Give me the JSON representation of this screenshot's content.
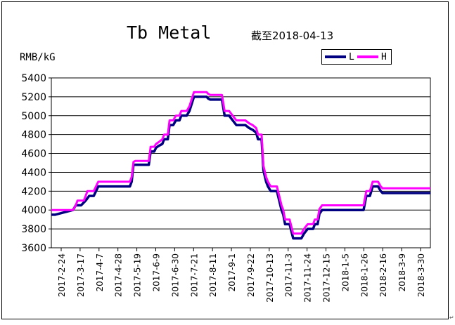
{
  "chart_data": {
    "type": "line",
    "title": "Tb Metal",
    "subtitle": "截至2018-04-13",
    "ylabel": "RMB/kG",
    "xlabel": "",
    "ylim": [
      3600,
      5400
    ],
    "yticks": [
      3600,
      3800,
      4000,
      4200,
      4400,
      4600,
      4800,
      5000,
      5200,
      5400
    ],
    "x_tick_labels": [
      "2017-2-24",
      "2017-3-17",
      "2017-4-7",
      "2017-4-28",
      "2017-5-19",
      "2017-6-9",
      "2017-6-30",
      "2017-7-21",
      "2017-8-11",
      "2017-9-1",
      "2017-9-22",
      "2017-10-13",
      "2017-11-3",
      "2017-11-24",
      "2017-12-15",
      "2018-1-5",
      "2018-1-26",
      "2018-2-16",
      "2018-3-9",
      "2018-3-30"
    ],
    "grid": "horizontal",
    "legend_position": "top-right",
    "series": [
      {
        "name": "L",
        "color": "#000080",
        "points": [
          [
            "2017-02-21",
            3950
          ],
          [
            "2017-03-13",
            4000
          ],
          [
            "2017-03-16",
            4050
          ],
          [
            "2017-03-22",
            4050
          ],
          [
            "2017-03-27",
            4100
          ],
          [
            "2017-03-31",
            4150
          ],
          [
            "2017-04-05",
            4150
          ],
          [
            "2017-04-10",
            4250
          ],
          [
            "2017-05-15",
            4250
          ],
          [
            "2017-05-17",
            4300
          ],
          [
            "2017-05-19",
            4480
          ],
          [
            "2017-05-21",
            4480
          ],
          [
            "2017-06-05",
            4480
          ],
          [
            "2017-06-07",
            4620
          ],
          [
            "2017-06-11",
            4620
          ],
          [
            "2017-06-13",
            4660
          ],
          [
            "2017-06-16",
            4680
          ],
          [
            "2017-06-20",
            4700
          ],
          [
            "2017-06-22",
            4750
          ],
          [
            "2017-06-26",
            4750
          ],
          [
            "2017-06-28",
            4900
          ],
          [
            "2017-07-02",
            4900
          ],
          [
            "2017-07-05",
            4950
          ],
          [
            "2017-07-09",
            4950
          ],
          [
            "2017-07-11",
            5000
          ],
          [
            "2017-07-17",
            5000
          ],
          [
            "2017-07-20",
            5050
          ],
          [
            "2017-07-25",
            5200
          ],
          [
            "2017-08-08",
            5200
          ],
          [
            "2017-08-10",
            5180
          ],
          [
            "2017-08-12",
            5170
          ],
          [
            "2017-08-25",
            5170
          ],
          [
            "2017-08-28",
            5000
          ],
          [
            "2017-09-02",
            5000
          ],
          [
            "2017-09-06",
            4950
          ],
          [
            "2017-09-10",
            4900
          ],
          [
            "2017-09-20",
            4900
          ],
          [
            "2017-09-24",
            4870
          ],
          [
            "2017-09-28",
            4850
          ],
          [
            "2017-10-02",
            4820
          ],
          [
            "2017-10-04",
            4750
          ],
          [
            "2017-10-08",
            4750
          ],
          [
            "2017-10-10",
            4420
          ],
          [
            "2017-10-13",
            4300
          ],
          [
            "2017-10-15",
            4250
          ],
          [
            "2017-10-18",
            4200
          ],
          [
            "2017-10-25",
            4200
          ],
          [
            "2017-10-27",
            4120
          ],
          [
            "2017-10-30",
            4000
          ],
          [
            "2017-11-01",
            3950
          ],
          [
            "2017-11-03",
            3850
          ],
          [
            "2017-11-08",
            3850
          ],
          [
            "2017-11-12",
            3700
          ],
          [
            "2017-11-21",
            3700
          ],
          [
            "2017-11-24",
            3750
          ],
          [
            "2017-11-28",
            3800
          ],
          [
            "2017-12-04",
            3800
          ],
          [
            "2017-12-06",
            3850
          ],
          [
            "2017-12-09",
            3850
          ],
          [
            "2017-12-11",
            3960
          ],
          [
            "2017-12-14",
            4000
          ],
          [
            "2018-01-29",
            4000
          ],
          [
            "2018-02-01",
            4150
          ],
          [
            "2018-02-05",
            4150
          ],
          [
            "2018-02-08",
            4250
          ],
          [
            "2018-02-14",
            4250
          ],
          [
            "2018-02-17",
            4200
          ],
          [
            "2018-02-19",
            4180
          ],
          [
            "2018-03-12",
            4180
          ]
        ]
      },
      {
        "name": "H",
        "color": "#ff00ff",
        "points": [
          [
            "2017-02-21",
            4000
          ],
          [
            "2017-03-13",
            4000
          ],
          [
            "2017-03-16",
            4050
          ],
          [
            "2017-03-18",
            4100
          ],
          [
            "2017-03-25",
            4100
          ],
          [
            "2017-03-27",
            4150
          ],
          [
            "2017-03-29",
            4200
          ],
          [
            "2017-04-05",
            4200
          ],
          [
            "2017-04-10",
            4300
          ],
          [
            "2017-05-15",
            4300
          ],
          [
            "2017-05-17",
            4350
          ],
          [
            "2017-05-19",
            4510
          ],
          [
            "2017-05-21",
            4520
          ],
          [
            "2017-06-05",
            4520
          ],
          [
            "2017-06-07",
            4670
          ],
          [
            "2017-06-11",
            4670
          ],
          [
            "2017-06-13",
            4700
          ],
          [
            "2017-06-16",
            4720
          ],
          [
            "2017-06-20",
            4750
          ],
          [
            "2017-06-22",
            4800
          ],
          [
            "2017-06-26",
            4800
          ],
          [
            "2017-06-28",
            4950
          ],
          [
            "2017-07-02",
            4950
          ],
          [
            "2017-07-05",
            5000
          ],
          [
            "2017-07-09",
            5000
          ],
          [
            "2017-07-11",
            5050
          ],
          [
            "2017-07-17",
            5050
          ],
          [
            "2017-07-20",
            5100
          ],
          [
            "2017-07-25",
            5250
          ],
          [
            "2017-08-08",
            5250
          ],
          [
            "2017-08-10",
            5230
          ],
          [
            "2017-08-12",
            5220
          ],
          [
            "2017-08-25",
            5220
          ],
          [
            "2017-08-28",
            5050
          ],
          [
            "2017-09-02",
            5050
          ],
          [
            "2017-09-06",
            5000
          ],
          [
            "2017-09-10",
            4950
          ],
          [
            "2017-09-20",
            4950
          ],
          [
            "2017-09-24",
            4920
          ],
          [
            "2017-09-28",
            4900
          ],
          [
            "2017-10-02",
            4870
          ],
          [
            "2017-10-04",
            4800
          ],
          [
            "2017-10-08",
            4800
          ],
          [
            "2017-10-10",
            4470
          ],
          [
            "2017-10-13",
            4350
          ],
          [
            "2017-10-15",
            4300
          ],
          [
            "2017-10-18",
            4250
          ],
          [
            "2017-10-25",
            4250
          ],
          [
            "2017-10-27",
            4170
          ],
          [
            "2017-10-30",
            4050
          ],
          [
            "2017-11-01",
            4000
          ],
          [
            "2017-11-03",
            3900
          ],
          [
            "2017-11-08",
            3900
          ],
          [
            "2017-11-12",
            3750
          ],
          [
            "2017-11-21",
            3750
          ],
          [
            "2017-11-24",
            3800
          ],
          [
            "2017-11-28",
            3850
          ],
          [
            "2017-12-04",
            3850
          ],
          [
            "2017-12-06",
            3900
          ],
          [
            "2017-12-09",
            3900
          ],
          [
            "2017-12-11",
            4010
          ],
          [
            "2017-12-14",
            4050
          ],
          [
            "2018-01-29",
            4050
          ],
          [
            "2018-02-01",
            4200
          ],
          [
            "2018-02-05",
            4200
          ],
          [
            "2018-02-08",
            4300
          ],
          [
            "2018-02-14",
            4300
          ],
          [
            "2018-02-17",
            4250
          ],
          [
            "2018-02-19",
            4230
          ],
          [
            "2018-03-12",
            4230
          ]
        ]
      }
    ]
  }
}
